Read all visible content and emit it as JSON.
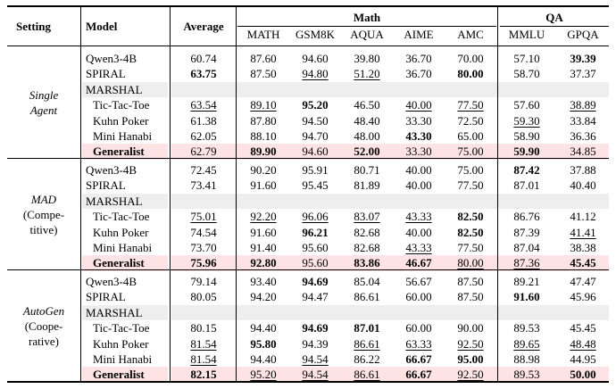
{
  "headers": {
    "setting": "Setting",
    "model": "Model",
    "average": "Average",
    "group_math": "Math",
    "group_qa": "QA",
    "columns": [
      "MATH",
      "GSM8K",
      "AQUA",
      "AIME",
      "AMC",
      "MMLU",
      "GPQA"
    ]
  },
  "sections": [
    {
      "setting_lines": [
        "Single",
        "Agent"
      ],
      "setting_italic": [
        true,
        true
      ],
      "marshal_label": "MARSHAL",
      "rows": [
        {
          "model": "Qwen3-4B",
          "vals": [
            "60.74",
            "87.60",
            "94.60",
            "39.80",
            "36.70",
            "70.00",
            "57.10",
            "39.39"
          ],
          "bold": [
            0,
            0,
            0,
            0,
            0,
            0,
            0,
            1
          ],
          "under": [
            0,
            0,
            0,
            0,
            0,
            0,
            0,
            0
          ]
        },
        {
          "model": "SPIRAL",
          "vals": [
            "63.75",
            "87.50",
            "94.80",
            "51.20",
            "36.70",
            "80.00",
            "58.70",
            "37.37"
          ],
          "bold": [
            1,
            0,
            0,
            0,
            0,
            1,
            0,
            0
          ],
          "under": [
            0,
            0,
            1,
            1,
            0,
            0,
            0,
            0
          ]
        },
        {
          "model": "Tic-Tac-Toe",
          "vals": [
            "63.54",
            "89.10",
            "95.20",
            "46.50",
            "40.00",
            "77.50",
            "57.60",
            "38.89"
          ],
          "bold": [
            0,
            0,
            1,
            0,
            0,
            0,
            0,
            0
          ],
          "under": [
            1,
            1,
            0,
            0,
            1,
            1,
            0,
            1
          ]
        },
        {
          "model": "Kuhn Poker",
          "vals": [
            "61.38",
            "87.80",
            "94.50",
            "48.40",
            "33.30",
            "72.50",
            "59.30",
            "33.84"
          ],
          "bold": [
            0,
            0,
            0,
            0,
            0,
            0,
            0,
            0
          ],
          "under": [
            0,
            0,
            0,
            0,
            0,
            0,
            1,
            0
          ]
        },
        {
          "model": "Mini Hanabi",
          "vals": [
            "62.05",
            "88.10",
            "94.70",
            "48.00",
            "43.30",
            "65.00",
            "58.90",
            "36.36"
          ],
          "bold": [
            0,
            0,
            0,
            0,
            1,
            0,
            0,
            0
          ],
          "under": [
            0,
            0,
            0,
            0,
            0,
            0,
            0,
            0
          ]
        },
        {
          "model": "Generalist",
          "vals": [
            "62.79",
            "89.90",
            "94.60",
            "52.00",
            "33.30",
            "75.00",
            "59.90",
            "34.85"
          ],
          "bold": [
            0,
            1,
            0,
            1,
            0,
            0,
            1,
            0
          ],
          "under": [
            0,
            0,
            0,
            0,
            0,
            0,
            0,
            0
          ]
        }
      ]
    },
    {
      "setting_lines": [
        "MAD",
        "(Compe-",
        "titive)"
      ],
      "setting_italic": [
        true,
        false,
        false
      ],
      "marshal_label": "MARSHAL",
      "rows": [
        {
          "model": "Qwen3-4B",
          "vals": [
            "72.45",
            "90.20",
            "95.91",
            "80.71",
            "40.00",
            "75.00",
            "87.42",
            "37.88"
          ],
          "bold": [
            0,
            0,
            0,
            0,
            0,
            0,
            1,
            0
          ],
          "under": [
            0,
            0,
            0,
            0,
            0,
            0,
            0,
            0
          ]
        },
        {
          "model": "SPIRAL",
          "vals": [
            "73.41",
            "91.60",
            "95.45",
            "81.89",
            "40.00",
            "77.50",
            "87.01",
            "40.40"
          ],
          "bold": [
            0,
            0,
            0,
            0,
            0,
            0,
            0,
            0
          ],
          "under": [
            0,
            0,
            0,
            0,
            0,
            0,
            0,
            0
          ]
        },
        {
          "model": "Tic-Tac-Toe",
          "vals": [
            "75.01",
            "92.20",
            "96.06",
            "83.07",
            "43.33",
            "82.50",
            "86.76",
            "41.12"
          ],
          "bold": [
            0,
            0,
            0,
            0,
            0,
            1,
            0,
            0
          ],
          "under": [
            1,
            1,
            1,
            1,
            1,
            0,
            0,
            0
          ]
        },
        {
          "model": "Kuhn Poker",
          "vals": [
            "74.54",
            "91.60",
            "96.21",
            "82.68",
            "40.00",
            "82.50",
            "87.39",
            "41.41"
          ],
          "bold": [
            0,
            0,
            1,
            0,
            0,
            1,
            0,
            0
          ],
          "under": [
            0,
            0,
            0,
            0,
            0,
            0,
            0,
            1
          ]
        },
        {
          "model": "Mini Hanabi",
          "vals": [
            "73.70",
            "91.40",
            "95.60",
            "82.68",
            "43.33",
            "77.50",
            "87.04",
            "38.38"
          ],
          "bold": [
            0,
            0,
            0,
            0,
            0,
            0,
            0,
            0
          ],
          "under": [
            0,
            0,
            0,
            0,
            1,
            0,
            0,
            0
          ]
        },
        {
          "model": "Generalist",
          "vals": [
            "75.96",
            "92.80",
            "95.60",
            "83.86",
            "46.67",
            "80.00",
            "87.36",
            "45.45"
          ],
          "bold": [
            1,
            1,
            0,
            1,
            1,
            0,
            0,
            1
          ],
          "under": [
            0,
            0,
            0,
            0,
            0,
            1,
            1,
            0
          ]
        }
      ]
    },
    {
      "setting_lines": [
        "AutoGen",
        "(Coope-",
        "rative)"
      ],
      "setting_italic": [
        true,
        false,
        false
      ],
      "marshal_label": "MARSHAL",
      "rows": [
        {
          "model": "Qwen3-4B",
          "vals": [
            "79.14",
            "93.40",
            "94.69",
            "85.04",
            "56.67",
            "87.50",
            "89.21",
            "47.47"
          ],
          "bold": [
            0,
            0,
            1,
            0,
            0,
            0,
            0,
            0
          ],
          "under": [
            0,
            0,
            0,
            0,
            0,
            0,
            0,
            0
          ]
        },
        {
          "model": "SPIRAL",
          "vals": [
            "80.05",
            "94.20",
            "94.47",
            "86.61",
            "60.00",
            "87.50",
            "91.60",
            "45.96"
          ],
          "bold": [
            0,
            0,
            0,
            0,
            0,
            0,
            1,
            0
          ],
          "under": [
            0,
            0,
            0,
            0,
            0,
            0,
            0,
            0
          ]
        },
        {
          "model": "Tic-Tac-Toe",
          "vals": [
            "80.15",
            "94.40",
            "94.69",
            "87.01",
            "60.00",
            "90.00",
            "89.53",
            "45.45"
          ],
          "bold": [
            0,
            0,
            1,
            1,
            0,
            0,
            0,
            0
          ],
          "under": [
            0,
            0,
            0,
            0,
            0,
            0,
            0,
            0
          ]
        },
        {
          "model": "Kuhn Poker",
          "vals": [
            "81.54",
            "95.80",
            "94.39",
            "86.61",
            "63.33",
            "92.50",
            "89.65",
            "48.48"
          ],
          "bold": [
            0,
            1,
            0,
            0,
            0,
            0,
            0,
            0
          ],
          "under": [
            1,
            0,
            0,
            1,
            1,
            1,
            1,
            1
          ]
        },
        {
          "model": "Mini Hanabi",
          "vals": [
            "81.54",
            "94.40",
            "94.54",
            "86.22",
            "66.67",
            "95.00",
            "88.98",
            "44.95"
          ],
          "bold": [
            0,
            0,
            0,
            0,
            1,
            1,
            0,
            0
          ],
          "under": [
            1,
            0,
            1,
            0,
            0,
            0,
            0,
            0
          ]
        },
        {
          "model": "Generalist",
          "vals": [
            "82.15",
            "95.20",
            "94.54",
            "86.61",
            "66.67",
            "92.50",
            "89.53",
            "50.00"
          ],
          "bold": [
            1,
            0,
            0,
            0,
            1,
            0,
            0,
            1
          ],
          "under": [
            0,
            1,
            1,
            1,
            0,
            1,
            0,
            0
          ]
        }
      ]
    }
  ]
}
